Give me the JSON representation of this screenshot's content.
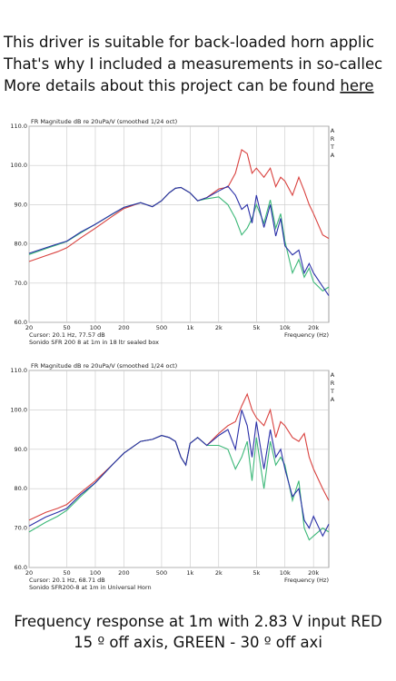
{
  "intro": {
    "lines": [
      "This driver is suitable for back-loaded horn applic",
      "That's why I included a measurements in so-callec",
      "More details about this project can be found "
    ],
    "link": "here"
  },
  "chart_data": [
    {
      "type": "line",
      "title": "FR Magnitude dB re 20uPa/V (smoothed 1/24 oct)",
      "side_label": "ARTA",
      "cursor": "Cursor: 20.1 Hz, 77.57 dB",
      "note": "Sonido SFR 200 8 at 1m in 18 ltr sealed box",
      "x_label": "Frequency (Hz)",
      "log_x": true,
      "grid": true,
      "xlim": [
        20,
        29000
      ],
      "ylim": [
        60,
        110
      ],
      "xticks": [
        20,
        50,
        100,
        200,
        500,
        {
          "value": 1000,
          "label": "1k"
        },
        {
          "value": 2000,
          "label": "2k"
        },
        {
          "value": 5000,
          "label": "5k"
        },
        {
          "value": 10000,
          "label": "10k"
        },
        {
          "value": 20000,
          "label": "20k"
        }
      ],
      "yticks": [
        {
          "value": 60,
          "label": "60.0"
        },
        {
          "value": 70,
          "label": "70.0"
        },
        {
          "value": 80,
          "label": "80.0"
        },
        {
          "value": 90,
          "label": "90.0"
        },
        {
          "value": 100,
          "label": "100.0"
        },
        {
          "value": 110,
          "label": "110.0"
        }
      ],
      "x": [
        20,
        30,
        40,
        50,
        70,
        100,
        150,
        200,
        300,
        400,
        500,
        600,
        700,
        800,
        1000,
        1200,
        1500,
        2000,
        2500,
        3000,
        3500,
        4000,
        4500,
        5000,
        6000,
        7000,
        8000,
        9000,
        10000,
        12000,
        14000,
        16000,
        18000,
        20000,
        25000,
        29000
      ],
      "series": [
        {
          "color": "#d9413e",
          "values": [
            75.5,
            77,
            78,
            79,
            81.5,
            84,
            87,
            89,
            90.5,
            89.5,
            91,
            93,
            94.2,
            94.4,
            93,
            91,
            91.8,
            94,
            94.5,
            98,
            104,
            103,
            98,
            99.3,
            97,
            99.3,
            94.6,
            97,
            96,
            92.4,
            97,
            93.5,
            90,
            87.7,
            82.3,
            81.4
          ]
        },
        {
          "color": "#3cb878",
          "values": [
            77.3,
            78.8,
            79.8,
            80.6,
            82.8,
            85,
            87.5,
            89.3,
            90.5,
            89.5,
            91,
            93,
            94.2,
            94.4,
            93,
            91,
            91.5,
            92,
            90,
            86.5,
            82.3,
            84,
            86.5,
            90,
            85.3,
            91.2,
            84,
            87.7,
            80.7,
            72.6,
            76,
            71.5,
            73.8,
            70.3,
            68,
            69
          ]
        },
        {
          "color": "#2a2fa8",
          "values": [
            77.6,
            79,
            80,
            80.7,
            83,
            85,
            87.6,
            89.3,
            90.5,
            89.5,
            91,
            93,
            94.2,
            94.4,
            93,
            91,
            91.8,
            93.5,
            94.7,
            92.4,
            88.8,
            90,
            85.3,
            92.4,
            84.2,
            90,
            82,
            86.5,
            79.5,
            77.2,
            78.4,
            72.6,
            75,
            72.6,
            69.1,
            66.8
          ]
        }
      ]
    },
    {
      "type": "line",
      "title": "FR Magnitude dB re 20uPa/V (smoothed 1/24 oct)",
      "side_label": "ARTA",
      "cursor": "Cursor: 20.1 Hz, 68.71 dB",
      "note": "Sonido SFR200-8 at 1m in Universal Horn",
      "x_label": "Frequency (Hz)",
      "log_x": true,
      "grid": true,
      "xlim": [
        20,
        29000
      ],
      "ylim": [
        60,
        110
      ],
      "xticks": [
        20,
        50,
        100,
        200,
        500,
        {
          "value": 1000,
          "label": "1k"
        },
        {
          "value": 2000,
          "label": "2k"
        },
        {
          "value": 5000,
          "label": "5k"
        },
        {
          "value": 10000,
          "label": "10k"
        },
        {
          "value": 20000,
          "label": "20k"
        }
      ],
      "yticks": [
        {
          "value": 60,
          "label": "60.0"
        },
        {
          "value": 70,
          "label": "70.0"
        },
        {
          "value": 80,
          "label": "80.0"
        },
        {
          "value": 90,
          "label": "90.0"
        },
        {
          "value": 100,
          "label": "100.0"
        },
        {
          "value": 110,
          "label": "110.0"
        }
      ],
      "x": [
        20,
        30,
        40,
        50,
        70,
        100,
        150,
        200,
        300,
        400,
        500,
        600,
        700,
        800,
        900,
        1000,
        1200,
        1500,
        2000,
        2500,
        3000,
        3500,
        4000,
        4500,
        5000,
        6000,
        7000,
        8000,
        9000,
        10000,
        12000,
        14000,
        16000,
        18000,
        20000,
        25000,
        29000
      ],
      "series": [
        {
          "color": "#d9413e",
          "values": [
            72,
            74,
            75,
            76,
            79,
            82,
            86,
            89,
            92,
            92.5,
            93.5,
            93,
            92,
            88,
            86,
            91.5,
            93,
            91,
            94,
            96,
            97,
            101,
            104,
            100,
            98,
            96,
            100,
            93,
            97,
            96,
            93,
            92,
            94,
            88,
            85,
            80,
            77
          ]
        },
        {
          "color": "#3cb878",
          "values": [
            69,
            71.5,
            73,
            74.5,
            78,
            81.5,
            86,
            89,
            92,
            92.5,
            93.5,
            93,
            92,
            88,
            86,
            91.5,
            93,
            91,
            91,
            90,
            85,
            88,
            92,
            82,
            93,
            80,
            92,
            86,
            88,
            86,
            77,
            82,
            70,
            67,
            68,
            70,
            69
          ]
        },
        {
          "color": "#2a2fa8",
          "values": [
            70.5,
            72.8,
            74,
            75,
            78.5,
            81.5,
            86,
            89,
            92,
            92.5,
            93.5,
            93,
            92,
            88,
            86,
            91.5,
            93,
            91,
            93.5,
            95,
            90,
            100,
            96,
            88,
            97,
            85,
            95,
            88,
            90,
            85,
            78,
            80,
            72,
            70,
            73,
            68,
            71
          ]
        }
      ]
    }
  ],
  "caption": [
    "Frequency response at 1m with 2.83 V input RED",
    "15 º off axis, GREEN - 30 º off axi"
  ]
}
